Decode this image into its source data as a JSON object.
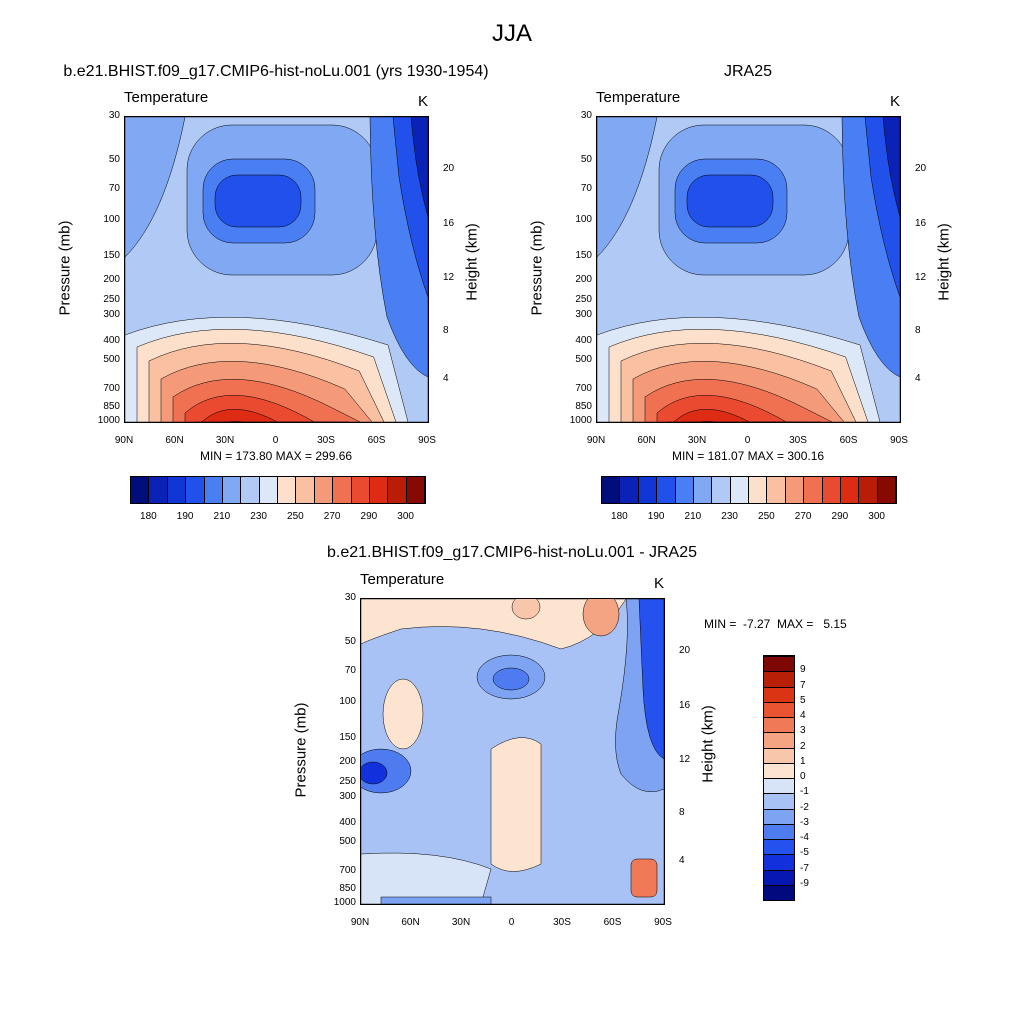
{
  "figure_title": "JJA",
  "colors": {
    "temp_scale": [
      "#000e7c",
      "#0a22b5",
      "#1136d6",
      "#2150ea",
      "#4a7ef3",
      "#80a8f3",
      "#b1c9f5",
      "#dce8f7",
      "#fce0cb",
      "#f9c0a2",
      "#f49a79",
      "#f07052",
      "#ea4a2f",
      "#dd2c13",
      "#b91d08",
      "#860a02"
    ],
    "diff_scale": [
      "#00097e",
      "#0718b2",
      "#1230db",
      "#2552ef",
      "#4f7bf1",
      "#7ea3f3",
      "#a9c2f6",
      "#d7e4f8",
      "#fce4d0",
      "#f8c7ab",
      "#f4a383",
      "#f07957",
      "#ea5431",
      "#db3414",
      "#b71f07",
      "#7d0803"
    ]
  },
  "panels": [
    {
      "title": "b.e21.BHIST.f09_g17.CMIP6-hist-noLu.001 (yrs 1930-1954)",
      "variable": "Temperature",
      "units": "K",
      "ylabel": "Pressure (mb)",
      "y2label": "Height (km)",
      "stats": "MIN = 173.80  MAX = 299.66",
      "xticks": [
        "90N",
        "60N",
        "30N",
        "0",
        "30S",
        "60S",
        "90S"
      ],
      "yticks": [
        "30",
        "50",
        "70",
        "100",
        "150",
        "200",
        "250",
        "300",
        "400",
        "500",
        "700",
        "850",
        "1000"
      ],
      "y2ticks": [
        "20",
        "16",
        "12",
        "8",
        "4"
      ]
    },
    {
      "title": "JRA25",
      "variable": "Temperature",
      "units": "K",
      "ylabel": "Pressure (mb)",
      "y2label": "Height (km)",
      "stats": "MIN = 181.07  MAX = 300.16",
      "xticks": [
        "90N",
        "60N",
        "30N",
        "0",
        "30S",
        "60S",
        "90S"
      ],
      "yticks": [
        "30",
        "50",
        "70",
        "100",
        "150",
        "200",
        "250",
        "300",
        "400",
        "500",
        "700",
        "850",
        "1000"
      ],
      "y2ticks": [
        "20",
        "16",
        "12",
        "8",
        "4"
      ]
    },
    {
      "title": "b.e21.BHIST.f09_g17.CMIP6-hist-noLu.001 - JRA25",
      "variable": "Temperature",
      "units": "K",
      "ylabel": "Pressure (mb)",
      "y2label": "Height (km)",
      "stats": "MIN =  -7.27  MAX =   5.15",
      "xticks": [
        "90N",
        "60N",
        "30N",
        "0",
        "30S",
        "60S",
        "90S"
      ],
      "yticks": [
        "30",
        "50",
        "70",
        "100",
        "150",
        "200",
        "250",
        "300",
        "400",
        "500",
        "700",
        "850",
        "1000"
      ],
      "y2ticks": [
        "20",
        "16",
        "12",
        "8",
        "4"
      ]
    }
  ],
  "colorbar_temp": {
    "labels": [
      "180",
      "190",
      "210",
      "230",
      "250",
      "270",
      "290",
      "300"
    ]
  },
  "colorbar_diff": {
    "labels": [
      "9",
      "7",
      "5",
      "4",
      "3",
      "2",
      "1",
      "0",
      "-1",
      "-2",
      "-3",
      "-4",
      "-5",
      "-7",
      "-9"
    ]
  },
  "chart_data": [
    {
      "type": "heatmap",
      "title": "b.e21.BHIST.f09_g17.CMIP6-hist-noLu.001 (yrs 1930-1954)",
      "ylabel": "Pressure (mb)",
      "x": [
        "90N",
        "60N",
        "30N",
        "0",
        "30S",
        "60S",
        "90S"
      ],
      "y": [
        30,
        50,
        70,
        100,
        150,
        200,
        250,
        300,
        400,
        500,
        700,
        850,
        1000
      ],
      "yscale": "log",
      "units": "K",
      "min": 173.8,
      "max": 299.66
    },
    {
      "type": "heatmap",
      "title": "JRA25",
      "ylabel": "Pressure (mb)",
      "x": [
        "90N",
        "60N",
        "30N",
        "0",
        "30S",
        "60S",
        "90S"
      ],
      "y": [
        30,
        50,
        70,
        100,
        150,
        200,
        250,
        300,
        400,
        500,
        700,
        850,
        1000
      ],
      "yscale": "log",
      "units": "K",
      "min": 181.07,
      "max": 300.16
    },
    {
      "type": "heatmap",
      "title": "b.e21.BHIST.f09_g17.CMIP6-hist-noLu.001 - JRA25",
      "ylabel": "Pressure (mb)",
      "x": [
        "90N",
        "60N",
        "30N",
        "0",
        "30S",
        "60S",
        "90S"
      ],
      "y": [
        30,
        50,
        70,
        100,
        150,
        200,
        250,
        300,
        400,
        500,
        700,
        850,
        1000
      ],
      "yscale": "log",
      "units": "K",
      "min": -7.27,
      "max": 5.15,
      "levels": [
        -9,
        -7,
        -5,
        -4,
        -3,
        -2,
        -1,
        0,
        1,
        2,
        3,
        4,
        5,
        7,
        9
      ]
    }
  ]
}
